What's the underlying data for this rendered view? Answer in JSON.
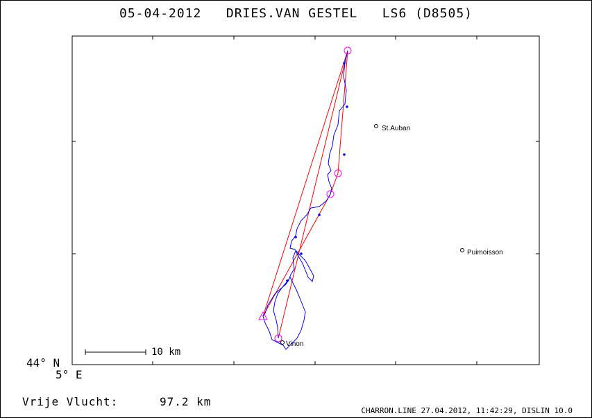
{
  "header": {
    "title": "05-04-2012   DRIES.VAN GESTEL   LS6 (D8505)"
  },
  "axes": {
    "lat_label": "44° N",
    "lon_label": "5° E"
  },
  "scale_bar": {
    "label": "10 km"
  },
  "towns": [
    {
      "name": "St.Auban"
    },
    {
      "name": "Puimoisson"
    },
    {
      "name": "Vinon"
    }
  ],
  "summary": {
    "distance_label": "Vrije Vlucht:",
    "distance_value": "97.2 km"
  },
  "footer": {
    "text": "CHARRON.LINE 27.04.2012, 11:42:29, DISLIN 10.0"
  },
  "colors": {
    "track": "#0000ff",
    "task_line": "#ff0000",
    "turnpoint_marker": "#ff00ff",
    "frame": "#000000"
  }
}
